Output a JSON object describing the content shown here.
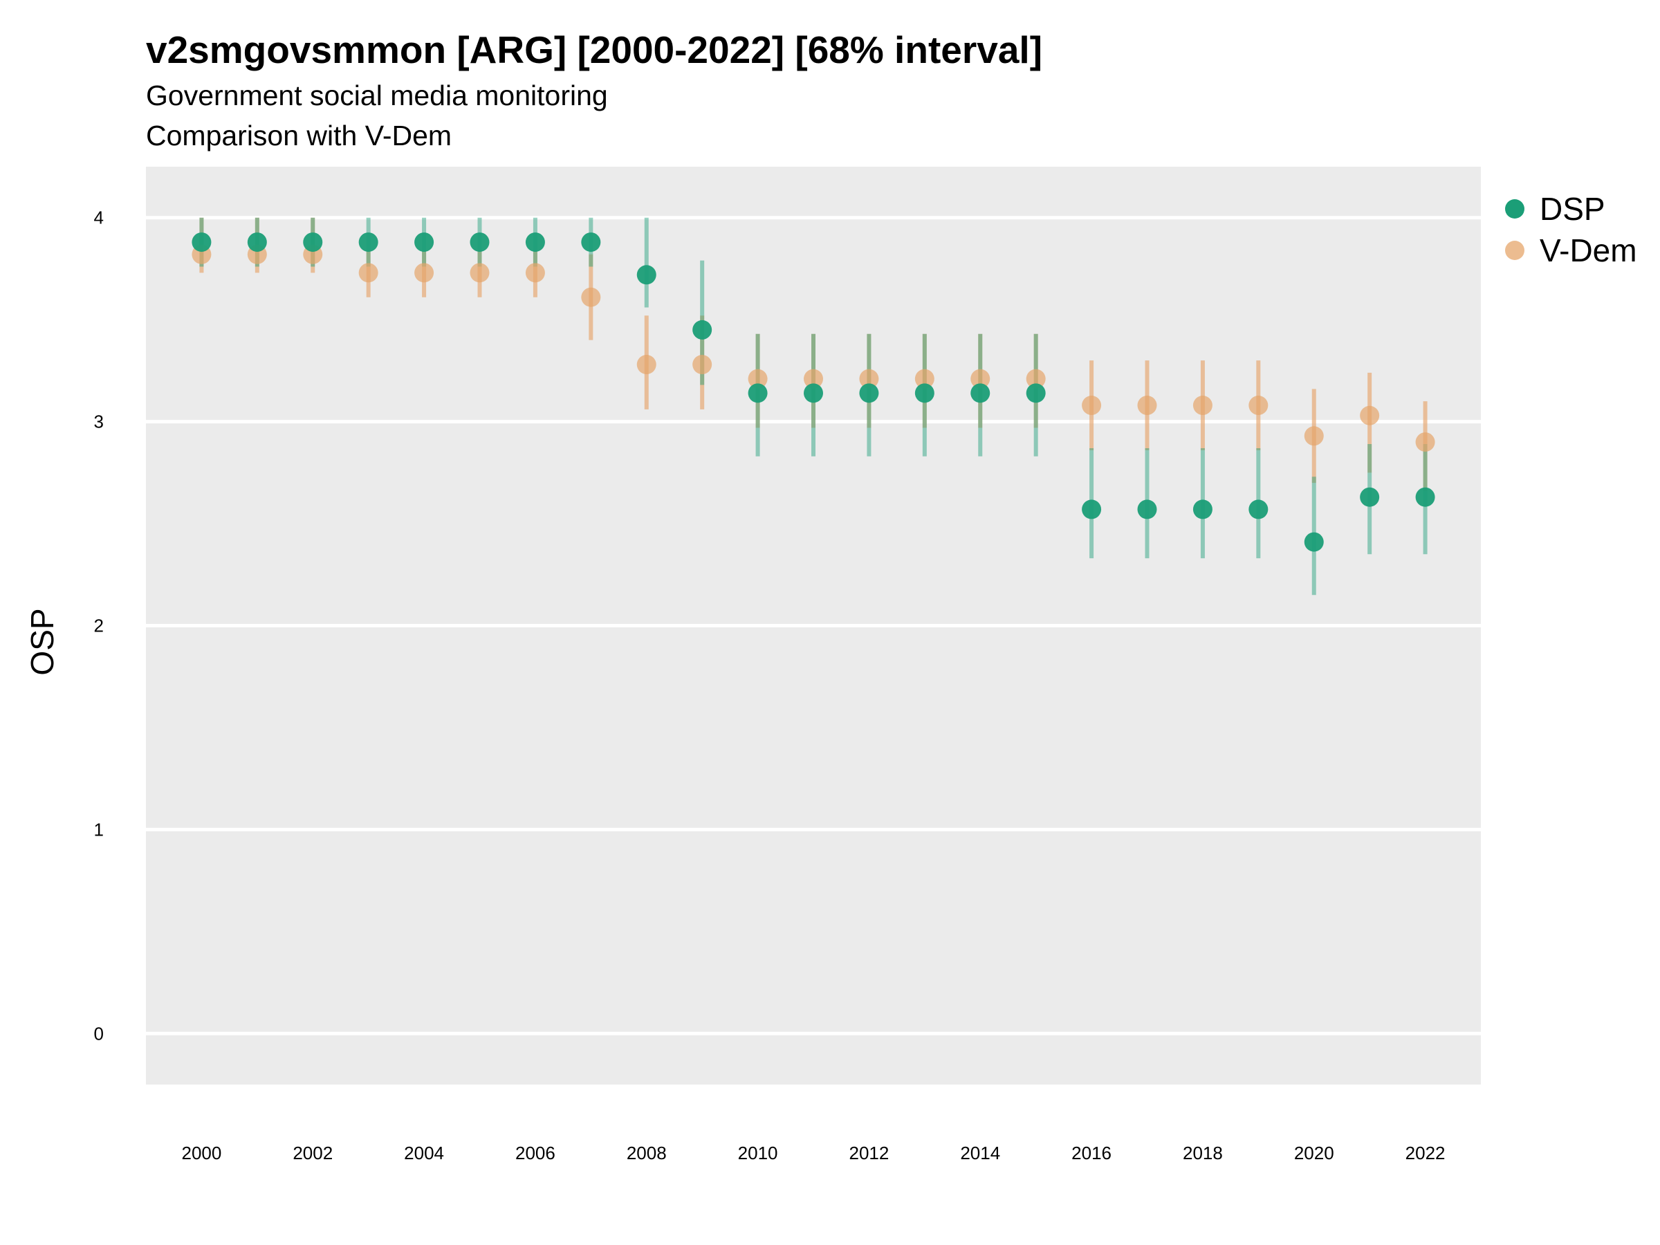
{
  "chart_data": {
    "type": "scatter",
    "title": "v2smgovsmmon [ARG] [2000-2022] [68% interval]",
    "subtitle": "Government social media monitoring",
    "subtitle2": "Comparison with V-Dem",
    "xlabel": "",
    "ylabel": "OSP",
    "xlim": [
      1999.0,
      2023.0
    ],
    "ylim": [
      -0.25,
      4.25
    ],
    "yticks": [
      "0",
      "1",
      "2",
      "3",
      "4"
    ],
    "xticks": [
      "2000",
      "2002",
      "2004",
      "2006",
      "2008",
      "2010",
      "2012",
      "2014",
      "2016",
      "2018",
      "2020",
      "2022"
    ],
    "grid": true,
    "legend_position": "right",
    "x": [
      2000,
      2001,
      2002,
      2003,
      2004,
      2005,
      2006,
      2007,
      2008,
      2009,
      2010,
      2011,
      2012,
      2013,
      2014,
      2015,
      2016,
      2017,
      2018,
      2019,
      2020,
      2021,
      2022
    ],
    "series": [
      {
        "name": "DSP",
        "color": "#1b9e77",
        "values": [
          3.88,
          3.88,
          3.88,
          3.88,
          3.88,
          3.88,
          3.88,
          3.88,
          3.72,
          3.45,
          3.14,
          3.14,
          3.14,
          3.14,
          3.14,
          3.14,
          2.57,
          2.57,
          2.57,
          2.57,
          2.41,
          2.63,
          2.63
        ],
        "lower": [
          3.76,
          3.76,
          3.76,
          3.76,
          3.76,
          3.76,
          3.76,
          3.76,
          3.56,
          3.18,
          2.83,
          2.83,
          2.83,
          2.83,
          2.83,
          2.83,
          2.33,
          2.33,
          2.33,
          2.33,
          2.15,
          2.35,
          2.35
        ],
        "upper": [
          4.0,
          4.0,
          4.0,
          4.0,
          4.0,
          4.0,
          4.0,
          4.0,
          4.0,
          3.79,
          3.43,
          3.43,
          3.43,
          3.43,
          3.43,
          3.43,
          2.87,
          2.87,
          2.87,
          2.87,
          2.73,
          2.89,
          2.89
        ]
      },
      {
        "name": "V-Dem",
        "color": "#e6a56b",
        "values": [
          3.82,
          3.82,
          3.82,
          3.73,
          3.73,
          3.73,
          3.73,
          3.61,
          3.28,
          3.28,
          3.21,
          3.21,
          3.21,
          3.21,
          3.21,
          3.21,
          3.08,
          3.08,
          3.08,
          3.08,
          2.93,
          3.03,
          2.9
        ],
        "lower": [
          3.73,
          3.73,
          3.73,
          3.61,
          3.61,
          3.61,
          3.61,
          3.4,
          3.06,
          3.06,
          2.97,
          2.97,
          2.97,
          2.97,
          2.97,
          2.97,
          2.86,
          2.86,
          2.86,
          2.86,
          2.7,
          2.75,
          2.66
        ],
        "upper": [
          4.0,
          4.0,
          4.0,
          3.84,
          3.84,
          3.84,
          3.84,
          3.82,
          3.52,
          3.52,
          3.43,
          3.43,
          3.43,
          3.43,
          3.43,
          3.43,
          3.3,
          3.3,
          3.3,
          3.3,
          3.16,
          3.24,
          3.1
        ]
      }
    ]
  }
}
